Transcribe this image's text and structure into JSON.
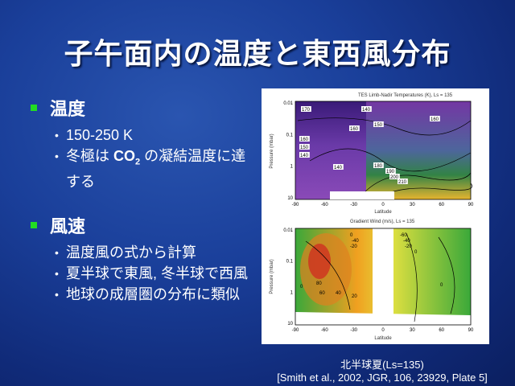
{
  "slide": {
    "title": "子午面内の温度と東西風分布",
    "sections": [
      {
        "heading": "温度",
        "items": [
          "150-250 K",
          "冬極は CO2 の凝結温度に達する"
        ]
      },
      {
        "heading": "風速",
        "items": [
          "温度風の式から計算",
          "夏半球で東風, 冬半球で西風",
          "地球の成層圏の分布に類似"
        ]
      }
    ],
    "temp_item2": {
      "pre": "冬極は ",
      "chem": "CO",
      "sub": "2",
      "post": " の凝結温度に達する"
    }
  },
  "figure": {
    "top_title": "TES Limb-Nadir Temperatures (K), Ls = 135",
    "bottom_title": "Gradient Wind (m/s), Ls = 135",
    "y_label": "Pressure (mbar)",
    "x_label": "Latitude",
    "y_ticks": [
      "0.01",
      "0.1",
      "1",
      "10"
    ],
    "x_ticks": [
      "-90",
      "-60",
      "-30",
      "0",
      "30",
      "60",
      "90"
    ],
    "top_contour_labels": [
      "170",
      "140",
      "160",
      "150",
      "160",
      "160",
      "150",
      "140",
      "140",
      "180",
      "190",
      "200",
      "210"
    ],
    "bottom_contour_labels": [
      "0",
      "-40",
      "-20",
      "-60",
      "-40",
      "-20",
      "0",
      "80",
      "60",
      "40",
      "20",
      "0",
      "0"
    ]
  },
  "caption": {
    "line1": "北半球夏(Ls=135)",
    "line2": "[Smith et al., 2002, JGR, 106, 23929, Plate 5]"
  },
  "colors": {
    "accent": "#22dd22"
  }
}
